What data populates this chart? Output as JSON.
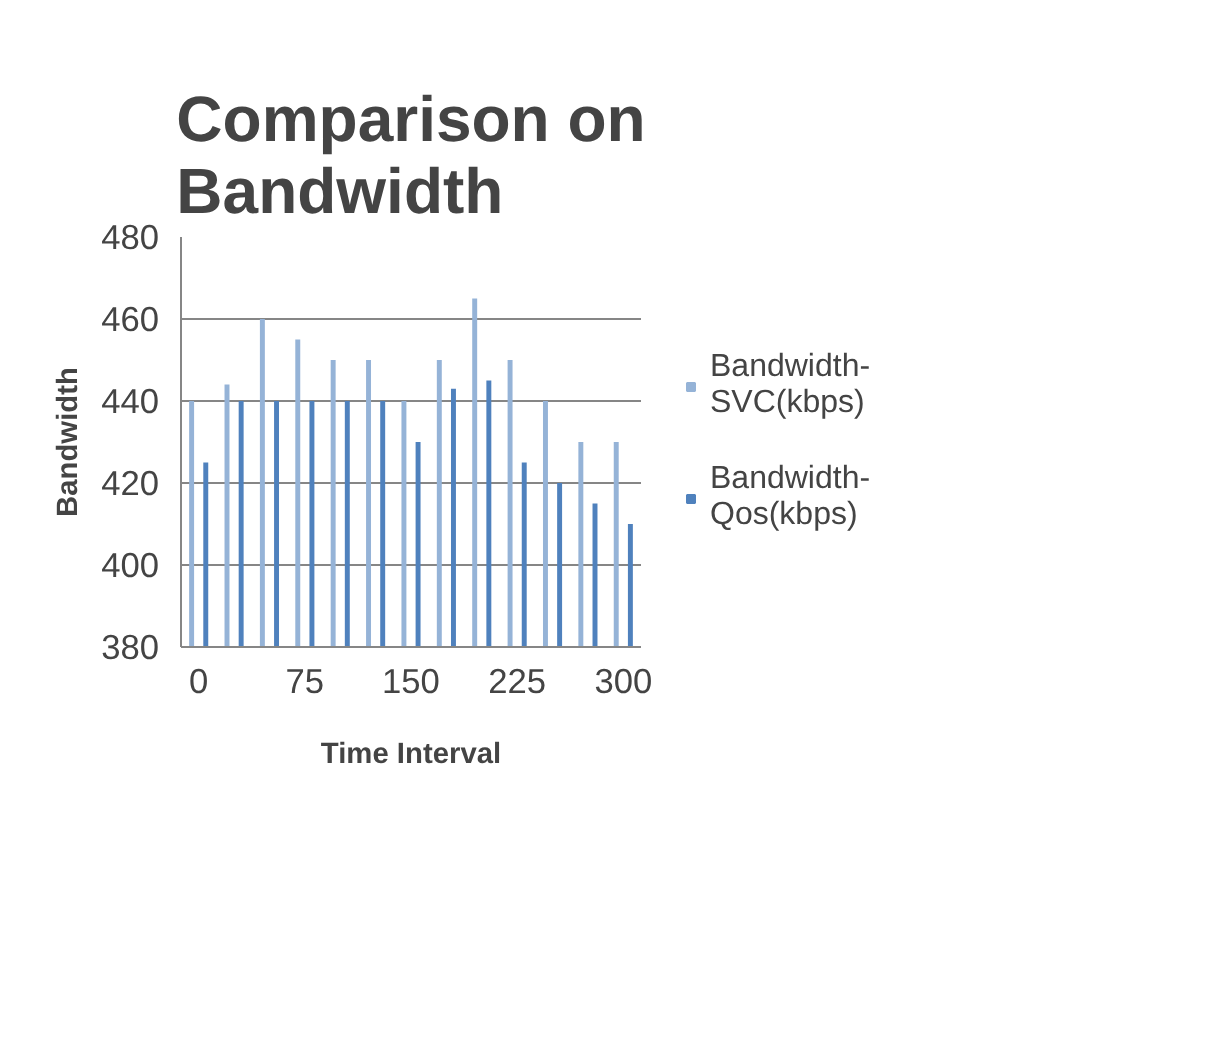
{
  "chart_data": {
    "type": "bar",
    "title": "Comparison on Bandwidth",
    "xlabel": "Time Interval",
    "ylabel": "Bandwidth",
    "categories": [
      "0",
      null,
      null,
      "75",
      null,
      null,
      "150",
      null,
      null,
      "225",
      null,
      null,
      "300"
    ],
    "series": [
      {
        "name": "Bandwidth-SVC(kbps)",
        "color": "#95b3d7",
        "values": [
          440,
          444,
          460,
          455,
          450,
          450,
          440,
          450,
          465,
          450,
          440,
          430,
          430
        ]
      },
      {
        "name": "Bandwidth-Qos(kbps)",
        "color": "#4f81bd",
        "values": [
          425,
          440,
          440,
          440,
          440,
          440,
          430,
          443,
          445,
          425,
          420,
          415,
          410
        ]
      }
    ],
    "ylim": [
      380,
      480
    ],
    "yticks": [
      380,
      400,
      420,
      440,
      460,
      480
    ],
    "grid": "y",
    "legend": "right"
  }
}
